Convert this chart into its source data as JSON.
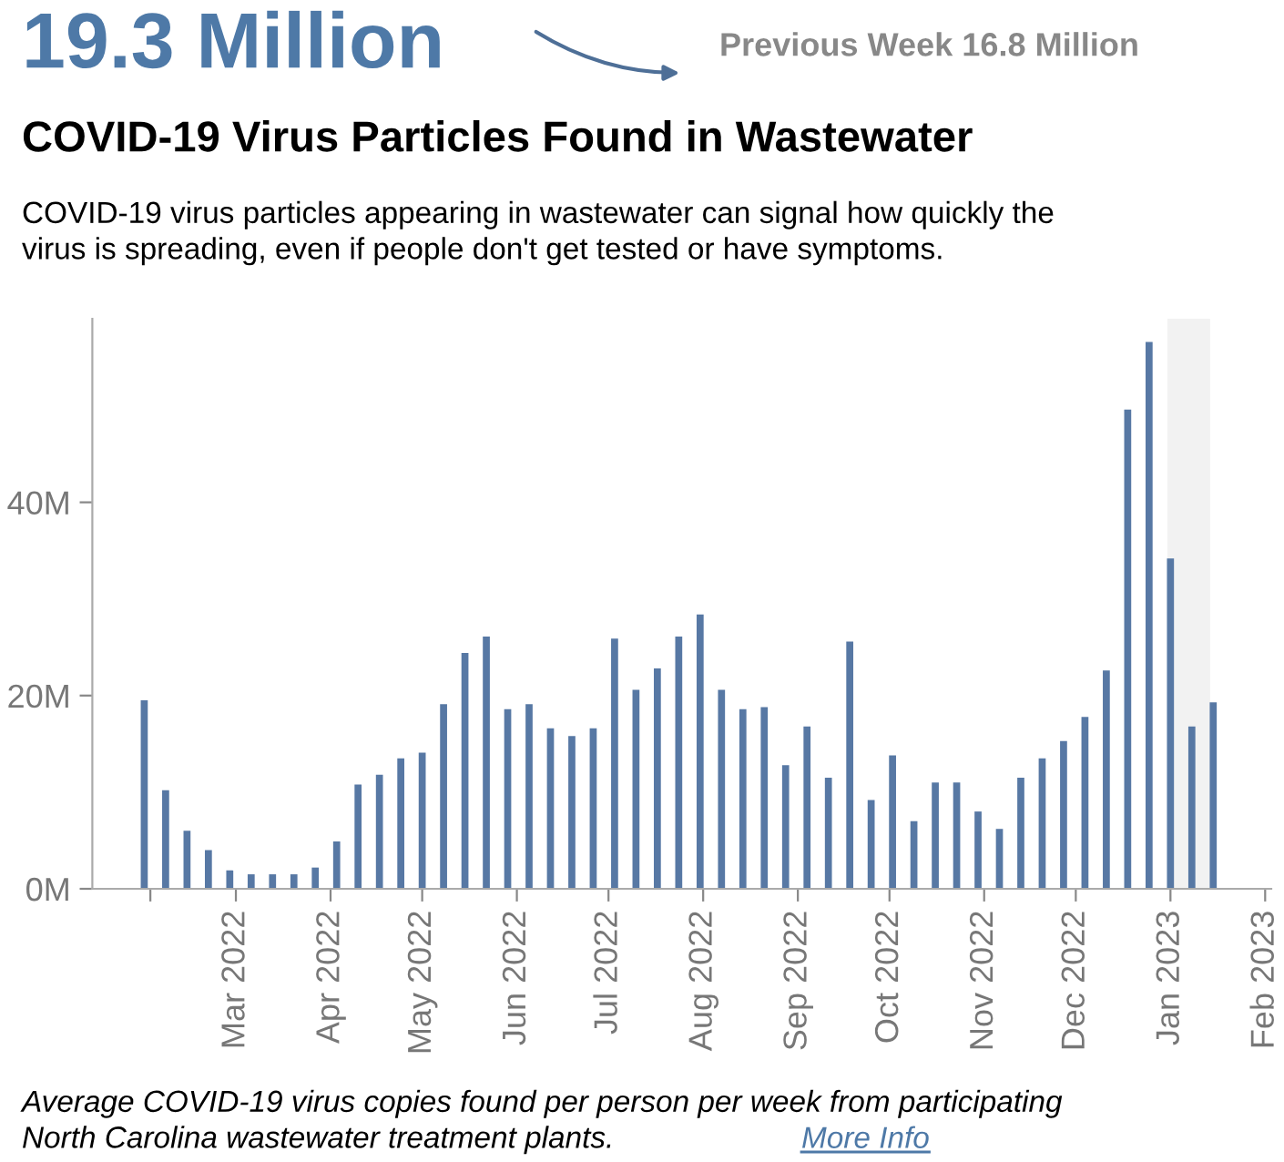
{
  "chart_data": {
    "type": "bar",
    "title": "COVID-19 Virus Particles Found in Wastewater",
    "subtitle": "COVID-19 virus particles appearing in wastewater can signal how quickly the\nvirus is spreading, even if people don't get tested or have symptoms.",
    "annotations": [
      "19.3 Million",
      "Previous Week 16.8 Million",
      "Average COVID-19 virus copies found per person per week from participating\nNorth Carolina wastewater treatment plants.",
      "More Info"
    ],
    "x": [
      "2022-01-30",
      "2022-02-06",
      "2022-02-13",
      "2022-02-20",
      "2022-02-27",
      "2022-03-06",
      "2022-03-13",
      "2022-03-20",
      "2022-03-27",
      "2022-04-03",
      "2022-04-10",
      "2022-04-17",
      "2022-04-24",
      "2022-05-01",
      "2022-05-08",
      "2022-05-15",
      "2022-05-22",
      "2022-05-29",
      "2022-06-05",
      "2022-06-12",
      "2022-06-19",
      "2022-06-26",
      "2022-07-03",
      "2022-07-10",
      "2022-07-17",
      "2022-07-24",
      "2022-07-31",
      "2022-08-07",
      "2022-08-14",
      "2022-08-21",
      "2022-08-28",
      "2022-09-04",
      "2022-09-11",
      "2022-09-18",
      "2022-09-25",
      "2022-10-02",
      "2022-10-09",
      "2022-10-16",
      "2022-10-23",
      "2022-10-30",
      "2022-11-06",
      "2022-11-13",
      "2022-11-20",
      "2022-11-27",
      "2022-12-04",
      "2022-12-11",
      "2022-12-18",
      "2022-12-25",
      "2023-01-01",
      "2023-01-08",
      "2023-01-15"
    ],
    "values": [
      19.5,
      10.2,
      6.0,
      4.0,
      1.9,
      1.5,
      1.5,
      1.5,
      2.2,
      4.9,
      10.8,
      11.8,
      13.5,
      14.1,
      19.1,
      24.4,
      26.1,
      18.6,
      19.1,
      16.6,
      15.8,
      16.6,
      25.9,
      20.6,
      22.8,
      26.1,
      28.4,
      20.6,
      18.6,
      18.8,
      12.8,
      16.8,
      11.5,
      25.6,
      9.2,
      13.8,
      7.0,
      11.0,
      11.0,
      8.0,
      6.2,
      11.5,
      13.5,
      15.3,
      17.8,
      22.6,
      49.6,
      56.6,
      34.2,
      16.8,
      19.3
    ],
    "color": "#5778a4",
    "xlim": [
      "2022-01-13",
      "2023-02-03"
    ],
    "xticks": [
      {
        "value": "2022-02-01",
        "label": null
      },
      {
        "value": "2022-03-01",
        "label": "Mar 2022"
      },
      {
        "value": "2022-04-01",
        "label": "Apr 2022"
      },
      {
        "value": "2022-05-01",
        "label": "May 2022"
      },
      {
        "value": "2022-06-01",
        "label": "Jun 2022"
      },
      {
        "value": "2022-07-01",
        "label": "Jul 2022"
      },
      {
        "value": "2022-08-01",
        "label": "Aug 2022"
      },
      {
        "value": "2022-09-01",
        "label": "Sep 2022"
      },
      {
        "value": "2022-10-01",
        "label": "Oct 2022"
      },
      {
        "value": "2022-11-01",
        "label": "Nov 2022"
      },
      {
        "value": "2022-12-01",
        "label": "Dec 2022"
      },
      {
        "value": "2023-01-01",
        "label": "Jan 2023"
      },
      {
        "value": "2023-02-01",
        "label": "Feb 2023"
      }
    ],
    "ylim": [
      0,
      59
    ],
    "yticks": [
      {
        "value": 0,
        "label": "0M"
      },
      {
        "value": 20,
        "label": "20M"
      },
      {
        "value": 40,
        "label": "40M"
      }
    ],
    "bands": [
      {
        "axis": "x",
        "from": "2022-12-31",
        "to": "2023-01-14",
        "color": "#f2f2f2"
      }
    ],
    "grid": false,
    "legend": false
  }
}
